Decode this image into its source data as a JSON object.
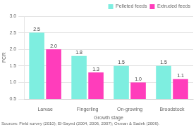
{
  "chart_data": {
    "type": "bar",
    "categories": [
      "Larvae",
      "Fingerling",
      "On-growing",
      "Broodstock"
    ],
    "series": [
      {
        "name": "Pelleted feeds",
        "color": "#7eeee0",
        "values": [
          2.5,
          1.8,
          1.5,
          1.5
        ]
      },
      {
        "name": "Extruded feeds",
        "color": "#ff3dbb",
        "values": [
          2.0,
          1.3,
          1.0,
          1.1
        ],
        "value_labels": [
          "2.0",
          "1.3",
          "1.0",
          "1.1"
        ]
      }
    ],
    "xlabel": "Growth stage",
    "ylabel": "FCR",
    "annotation": "Sources: Field survey (2010); El-Sayed (2004, 2006, 2007); Osman & Sadek (2006).",
    "ylim": [
      0.5,
      3.0
    ],
    "yticks": [
      0.5,
      {
        "value": 1.0,
        "label": "1.0"
      },
      1.5,
      {
        "value": 2.0,
        "label": "2.0"
      },
      2.5,
      {
        "value": 3.0,
        "label": "3.0"
      }
    ],
    "grid": true,
    "legend": "upper right",
    "data_labels": true
  }
}
